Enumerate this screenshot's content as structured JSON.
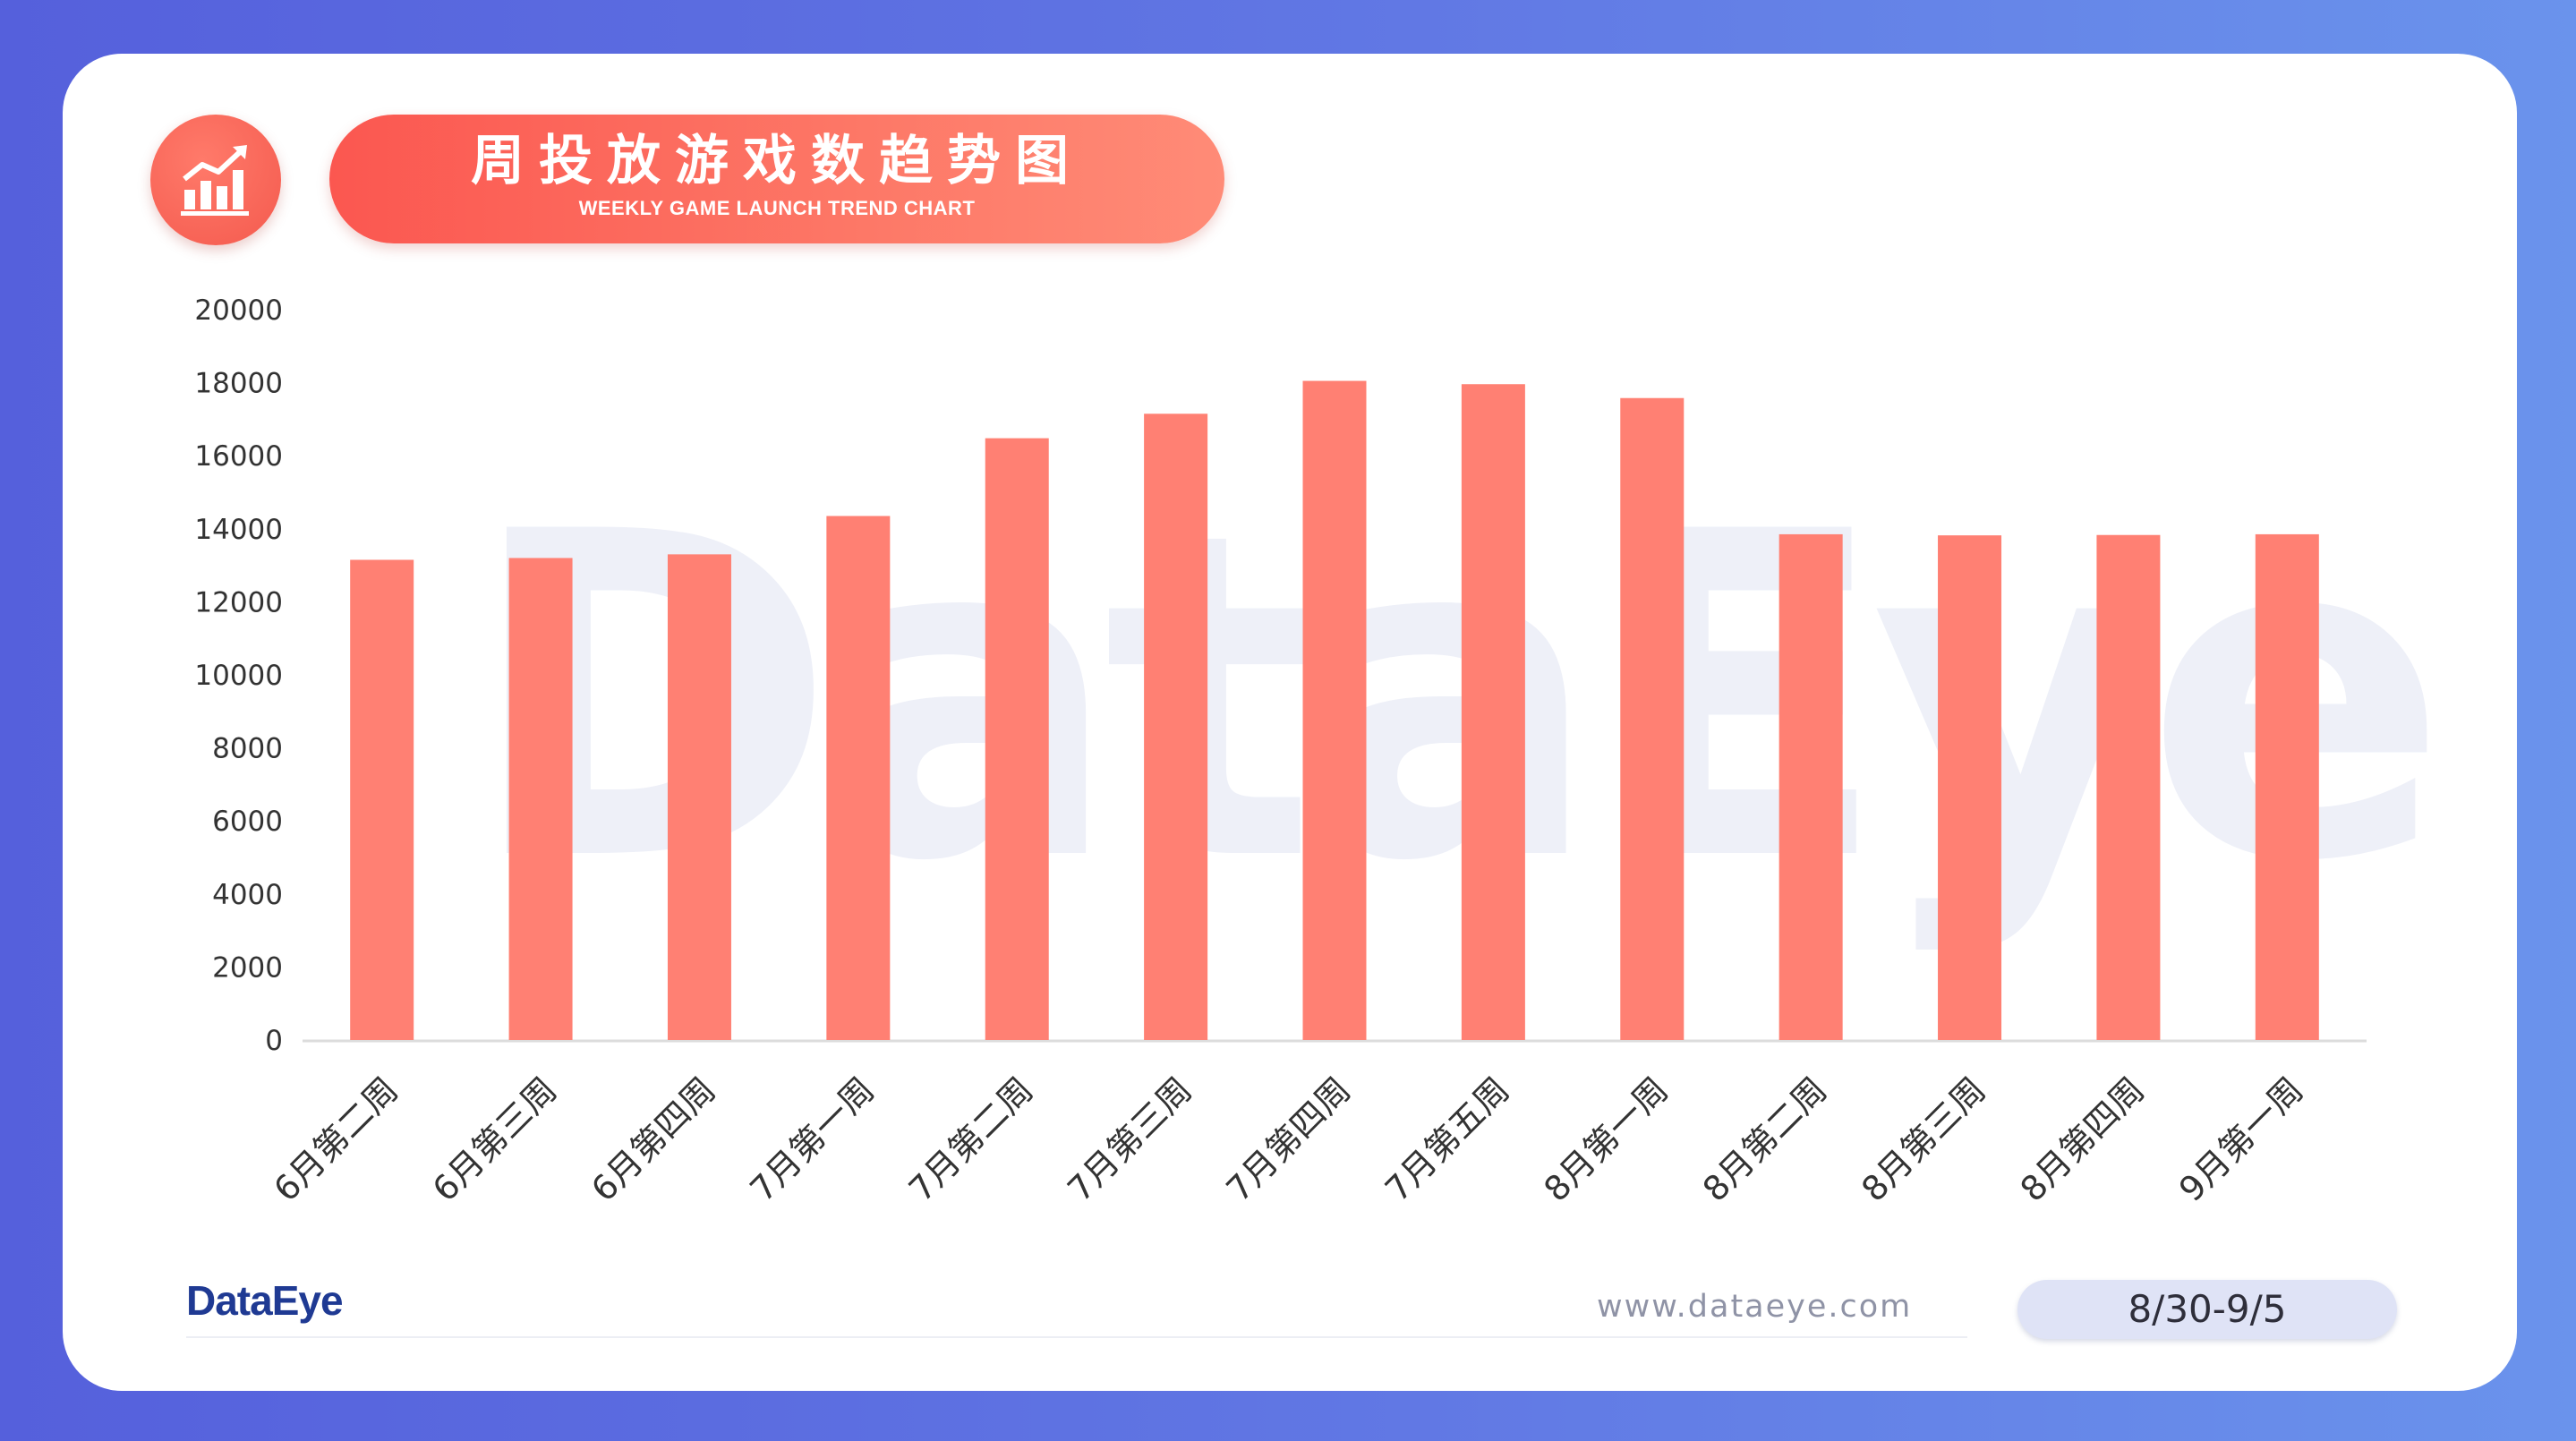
{
  "header": {
    "title": "周投放游戏数趋势图",
    "subtitle": "WEEKLY GAME LAUNCH TREND CHART",
    "icon": "bar-chart-growth-icon"
  },
  "watermark": "DataEye",
  "footer": {
    "logo": "DataEye",
    "url": "www.dataeye.com",
    "date_range": "8/30-9/5"
  },
  "colors": {
    "bar": "#ff8073",
    "accent": "#f85a50",
    "background": "#5a68e0"
  },
  "chart_data": {
    "type": "bar",
    "categories": [
      "6月第二周",
      "6月第三周",
      "6月第四周",
      "7月第一周",
      "7月第二周",
      "7月第三周",
      "7月第四周",
      "7月第五周",
      "8月第一周",
      "8月第二周",
      "8月第三周",
      "8月第四周",
      "9月第一周"
    ],
    "values": [
      13150,
      13200,
      13300,
      14350,
      16480,
      17150,
      18050,
      17960,
      17580,
      13850,
      13820,
      13830,
      13850
    ],
    "yticks": [
      "0",
      "2000",
      "4000",
      "6000",
      "8000",
      "10000",
      "12000",
      "14000",
      "16000",
      "18000",
      "20000"
    ],
    "ylim": [
      0,
      20000
    ],
    "title": "周投放游戏数趋势图",
    "xlabel": "",
    "ylabel": "",
    "grid": false,
    "legend": "none"
  }
}
